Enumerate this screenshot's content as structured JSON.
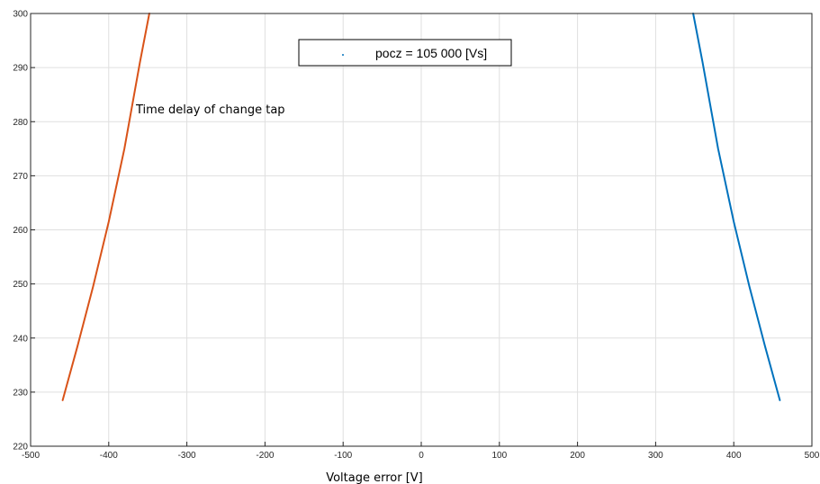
{
  "chart_data": {
    "type": "line",
    "xlabel": "Voltage error [V]",
    "ylabel": "",
    "xlim": [
      -500,
      500
    ],
    "ylim": [
      220,
      300
    ],
    "xticks": [
      -500,
      -400,
      -300,
      -200,
      -100,
      0,
      100,
      200,
      300,
      400,
      500
    ],
    "yticks": [
      220,
      230,
      240,
      250,
      260,
      270,
      280,
      290,
      300
    ],
    "grid": true,
    "legend": {
      "position": "top-center",
      "entries": [
        "pocz = 105 000 [Vs]"
      ]
    },
    "annotation": "Time delay of change tap",
    "series": [
      {
        "color": "#D95319",
        "x": [
          -459,
          -440,
          -420,
          -400,
          -380,
          -360,
          -348
        ],
        "y": [
          228.5,
          238.5,
          249.5,
          261.5,
          275,
          291,
          300
        ]
      },
      {
        "color": "#0072BD",
        "x": [
          459,
          440,
          420,
          400,
          380,
          360,
          348
        ],
        "y": [
          228.5,
          238.5,
          249.5,
          261.5,
          275,
          291,
          300
        ]
      }
    ]
  }
}
